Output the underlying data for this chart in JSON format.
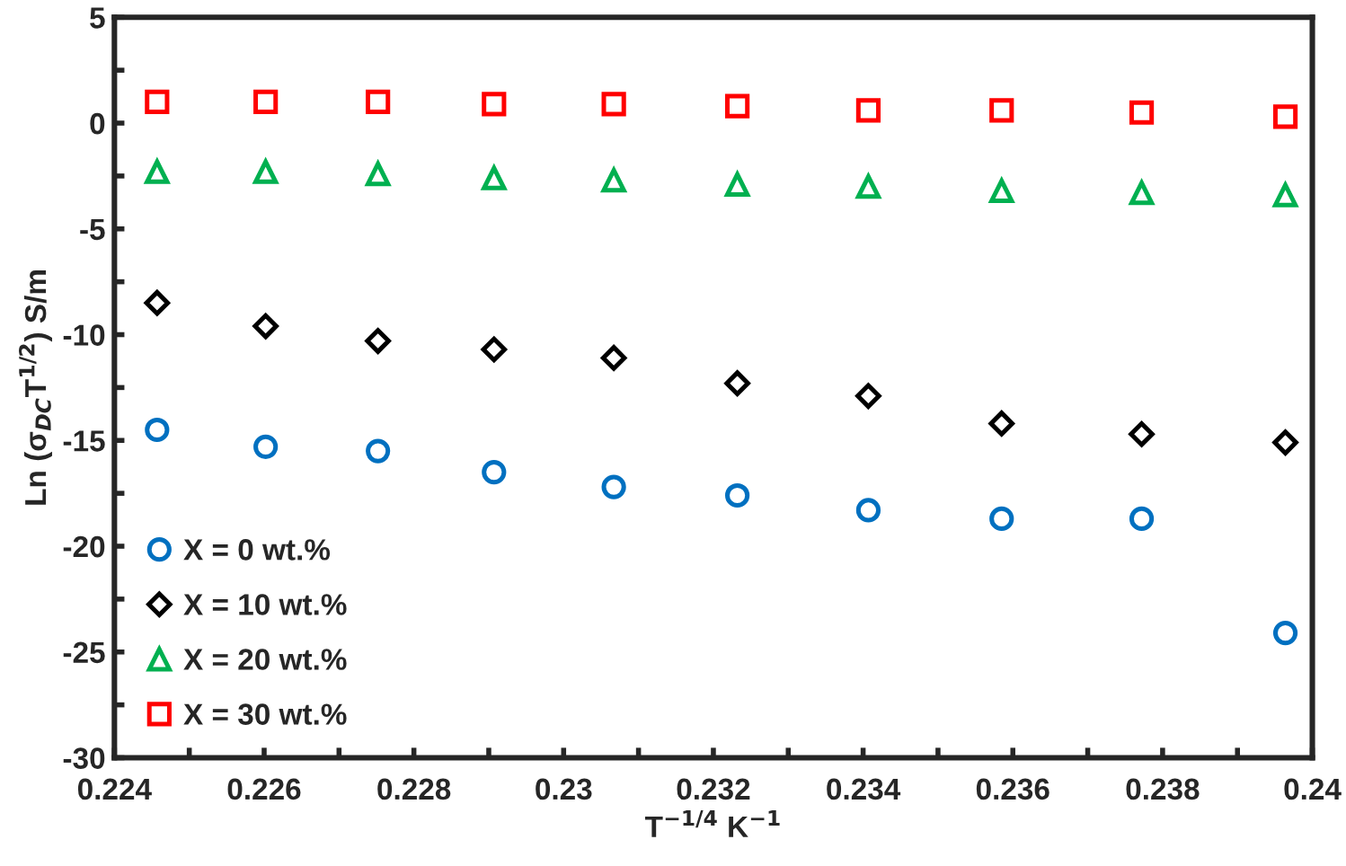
{
  "chart_data": {
    "type": "scatter",
    "xlabel": "T$^{−1/4}$ K$^{−1}$",
    "ylabel": "Ln (σ$_{DC}$T$^{1/2}$) S/m",
    "x": [
      0.22457,
      0.22602,
      0.22752,
      0.22907,
      0.23067,
      0.23232,
      0.23407,
      0.23585,
      0.23772,
      0.23964
    ],
    "series": [
      {
        "name": "X = 0 wt.%",
        "color": "#0070c0",
        "marker": "circle",
        "values": [
          -14.5,
          -15.3,
          -15.5,
          -16.5,
          -17.2,
          -17.6,
          -18.3,
          -18.7,
          -18.7,
          -24.1
        ]
      },
      {
        "name": "X = 10 wt.%",
        "color": "#000000",
        "marker": "diamond",
        "values": [
          -8.5,
          -9.6,
          -10.3,
          -10.7,
          -11.1,
          -12.3,
          -12.9,
          -14.2,
          -14.7,
          -15.1
        ]
      },
      {
        "name": "X = 20 wt.%",
        "color": "#00b050",
        "marker": "triangle",
        "values": [
          -2.3,
          -2.3,
          -2.4,
          -2.6,
          -2.7,
          -2.9,
          -3.0,
          -3.2,
          -3.3,
          -3.4
        ]
      },
      {
        "name": "X = 30 wt.%",
        "color": "#ff0000",
        "marker": "square",
        "values": [
          1.0,
          1.0,
          1.0,
          0.9,
          0.9,
          0.8,
          0.6,
          0.6,
          0.5,
          0.3
        ]
      }
    ],
    "xlim": [
      0.224,
      0.24
    ],
    "xticks": [
      0.224,
      {
        "value": 0.225,
        "label": null
      },
      0.226,
      {
        "value": 0.227,
        "label": null
      },
      0.228,
      {
        "value": 0.229,
        "label": null
      },
      0.23,
      {
        "value": 0.231,
        "label": null
      },
      0.232,
      {
        "value": 0.233,
        "label": null
      },
      0.234,
      {
        "value": 0.235,
        "label": null
      },
      0.236,
      {
        "value": 0.237,
        "label": null
      },
      0.238,
      {
        "value": 0.239,
        "label": null
      },
      0.24
    ],
    "ylim": [
      -30,
      5
    ],
    "yticks": [
      -30,
      {
        "value": -27.5,
        "label": null
      },
      -25,
      {
        "value": -22.5,
        "label": null
      },
      -20,
      {
        "value": -17.5,
        "label": null
      },
      -15,
      {
        "value": -12.5,
        "label": null
      },
      -10,
      {
        "value": -7.5,
        "label": null
      },
      -5,
      {
        "value": -2.5,
        "label": null
      },
      0,
      {
        "value": 2.5,
        "label": null
      },
      5
    ],
    "grid": false,
    "legend": "bottom left"
  }
}
